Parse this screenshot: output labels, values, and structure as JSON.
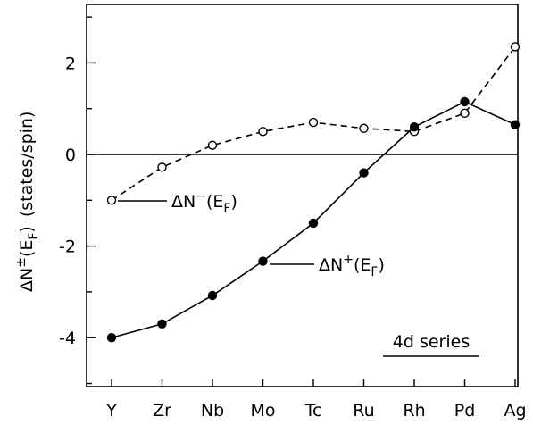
{
  "chart_data": {
    "type": "line",
    "ylabel": "ΔN±(EF) (states/spin)",
    "ylim": [
      -5.25,
      3.1
    ],
    "yticks": [
      -4,
      -2,
      0,
      2
    ],
    "categories": [
      "Y",
      "Zr",
      "Nb",
      "Mo",
      "Tc",
      "Ru",
      "Rh",
      "Pd",
      "Ag"
    ],
    "series": [
      {
        "name": "ΔN−(EF)",
        "marker": "open-circle",
        "line": "dashed",
        "values": [
          -1.0,
          -0.28,
          0.2,
          0.5,
          0.7,
          0.57,
          0.5,
          0.9,
          2.35
        ]
      },
      {
        "name": "ΔN+(EF)",
        "marker": "filled-circle",
        "line": "solid",
        "values": [
          -4.0,
          -3.7,
          -3.08,
          -2.33,
          -1.5,
          -0.4,
          0.6,
          1.15,
          0.65
        ]
      }
    ],
    "zero_line": true,
    "grid": false,
    "annotation": "4d series"
  },
  "labels": {
    "y_title_main": "ΔN",
    "y_title_sup": "±",
    "y_title_paren": "(E",
    "y_title_sub": "F",
    "y_title_close": ")",
    "y_title_units": "(states/spin)",
    "series_minus_delta": "ΔN",
    "series_minus_sup": "−",
    "series_minus_open": "(E",
    "series_minus_sub": "F",
    "series_minus_close": ")",
    "series_plus_delta": "ΔN",
    "series_plus_sup": "+",
    "series_plus_open": "(E",
    "series_plus_sub": "F",
    "series_plus_close": ")",
    "annotation": "4d series"
  }
}
